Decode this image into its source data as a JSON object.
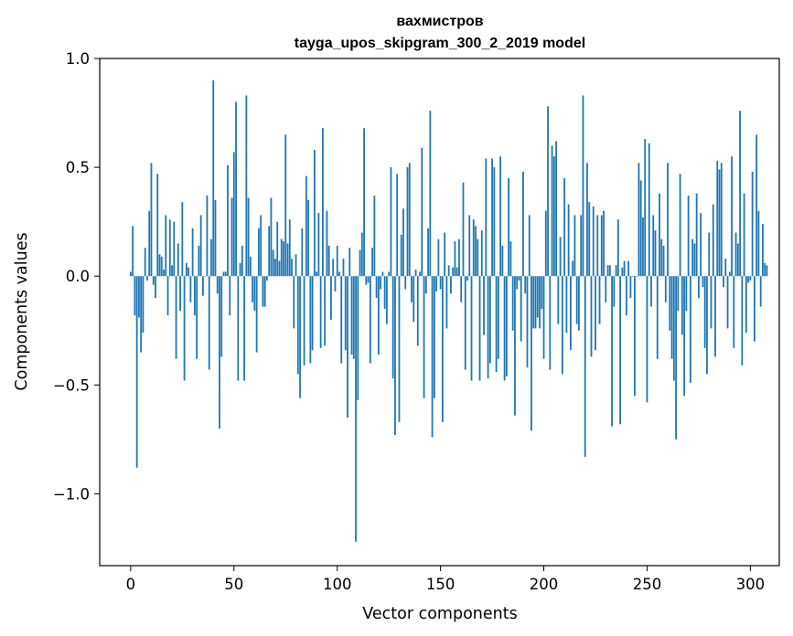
{
  "chart_data": {
    "type": "bar",
    "title": "вахмистров",
    "subtitle": "tayga_upos_skipgram_300_2_2019 model",
    "xlabel": "Vector components",
    "ylabel": "Components values",
    "xlim": [
      -15,
      314
    ],
    "ylim": [
      -1.33,
      1.0
    ],
    "xticks": [
      0,
      50,
      100,
      150,
      200,
      250,
      300
    ],
    "yticks": [
      1.0,
      0.5,
      0.0,
      -0.5,
      -1.0
    ],
    "xtick_labels": [
      "0",
      "50",
      "100",
      "150",
      "200",
      "250",
      "300"
    ],
    "ytick_labels": [
      "1.0",
      "0.5",
      "0.0",
      "−0.5",
      "−1.0"
    ],
    "color": "#1f77b4",
    "values": [
      0.02,
      0.23,
      -0.18,
      -0.88,
      -0.19,
      -0.35,
      -0.26,
      0.13,
      -0.02,
      0.3,
      0.52,
      -0.04,
      -0.1,
      0.47,
      0.1,
      0.09,
      0.03,
      0.28,
      -0.18,
      0.26,
      0.05,
      0.25,
      -0.38,
      0.15,
      -0.16,
      0.34,
      -0.48,
      0.06,
      0.04,
      -0.12,
      0.22,
      -0.18,
      -0.38,
      0.14,
      0.28,
      -0.09,
      0.0,
      0.37,
      -0.43,
      0.17,
      0.9,
      0.35,
      -0.08,
      -0.7,
      -0.37,
      0.02,
      0.02,
      0.51,
      -0.18,
      0.36,
      0.57,
      0.8,
      -0.48,
      0.06,
      0.14,
      -0.48,
      0.83,
      0.36,
      0.09,
      -0.12,
      -0.16,
      -0.35,
      0.22,
      0.28,
      -0.14,
      -0.14,
      -0.02,
      0.23,
      0.36,
      0.12,
      0.08,
      0.25,
      0.07,
      0.17,
      0.16,
      0.65,
      0.15,
      0.26,
      0.08,
      -0.24,
      0.1,
      -0.45,
      -0.56,
      0.22,
      -0.41,
      0.46,
      0.35,
      -0.4,
      -0.34,
      0.58,
      0.02,
      0.29,
      -0.33,
      0.68,
      -0.32,
      0.3,
      0.14,
      -0.2,
      0.08,
      -0.07,
      0.14,
      0.02,
      -0.4,
      0.08,
      -0.34,
      -0.65,
      0.13,
      -0.36,
      -0.38,
      -1.22,
      -0.57,
      0.12,
      0.2,
      0.68,
      -0.04,
      -0.03,
      -0.4,
      0.13,
      0.37,
      -0.1,
      -0.36,
      -0.06,
      0.02,
      -0.15,
      -0.22,
      0.02,
      0.5,
      -0.47,
      -0.73,
      0.47,
      -0.67,
      0.19,
      0.31,
      -0.06,
      0.5,
      0.52,
      -0.12,
      -0.21,
      0.03,
      -0.32,
      0.02,
      0.59,
      -0.56,
      -0.08,
      0.22,
      0.76,
      -0.74,
      -0.56,
      -0.07,
      0.17,
      -0.06,
      -0.67,
      0.2,
      -0.24,
      0.05,
      -0.08,
      0.04,
      0.16,
      0.04,
      0.17,
      -0.12,
      0.43,
      -0.43,
      -0.02,
      0.28,
      -0.48,
      0.26,
      0.23,
      0.17,
      -0.48,
      0.21,
      -0.27,
      0.54,
      -0.47,
      -0.4,
      0.54,
      0.5,
      -0.44,
      -0.38,
      0.55,
      0.14,
      -0.48,
      -0.46,
      0.45,
      0.16,
      -0.25,
      -0.64,
      -0.06,
      -0.02,
      -0.3,
      0.48,
      -0.08,
      -0.42,
      0.28,
      -0.71,
      -0.24,
      -0.24,
      -0.19,
      -0.24,
      -0.15,
      -0.38,
      0.3,
      0.78,
      -0.43,
      0.6,
      0.55,
      0.62,
      -0.22,
      0.18,
      -0.45,
      0.45,
      -0.26,
      0.33,
      -0.34,
      0.07,
      0.28,
      -0.22,
      -0.25,
      0.28,
      0.83,
      -0.83,
      0.52,
      0.34,
      -0.37,
      0.32,
      -0.34,
      0.28,
      -0.22,
      0.28,
      0.3,
      -0.12,
      0.05,
      0.05,
      -0.69,
      -0.14,
      0.05,
      0.26,
      -0.68,
      0.04,
      0.07,
      -0.18,
      0.07,
      -0.1,
      0.0,
      -0.55,
      0.0,
      0.52,
      0.44,
      0.27,
      0.63,
      -0.58,
      0.61,
      -0.14,
      0.28,
      0.21,
      -0.38,
      0.38,
      0.17,
      0.14,
      -0.12,
      0.52,
      -0.25,
      -0.38,
      -0.48,
      -0.75,
      -0.16,
      0.47,
      -0.27,
      -0.55,
      -0.16,
      0.37,
      -0.49,
      0.17,
      0.15,
      0.38,
      -0.1,
      0.29,
      -0.05,
      -0.33,
      -0.45,
      0.2,
      -0.24,
      0.33,
      -0.37,
      0.53,
      0.49,
      0.52,
      -0.05,
      0.08,
      -0.24,
      0.02,
      0.55,
      -0.33,
      0.2,
      0.15,
      0.76,
      -0.41,
      0.38,
      -0.26,
      -0.03,
      -0.02,
      0.48,
      -0.3,
      0.65,
      0.3,
      -0.14,
      0.24,
      0.06,
      0.05
    ]
  }
}
